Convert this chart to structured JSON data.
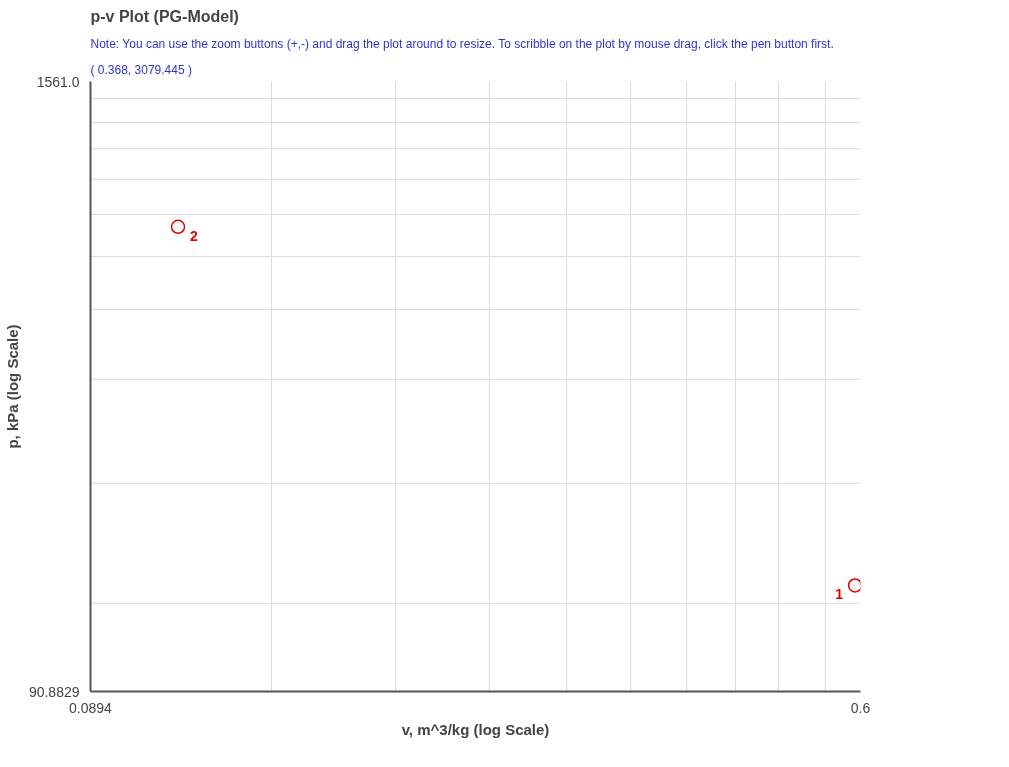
{
  "chart_data": {
    "type": "scatter",
    "title": "p-v Plot (PG-Model)",
    "xlabel": "v, m^3/kg (log Scale)",
    "ylabel": "p, kPa (log Scale)",
    "log": "xy",
    "marker": "circle",
    "grid": true,
    "x": [
      0.592,
      0.111
    ],
    "series": [
      {
        "color": "#e00000",
        "values": [
          149,
          793
        ]
      }
    ],
    "xlim": [
      0.0894,
      0.6
    ],
    "ylim": [
      90.8829,
      1561.0
    ],
    "xticks": [
      {
        "value": 0.0894,
        "label": "0.0894"
      },
      {
        "value": 0.14,
        "label": null
      },
      {
        "value": 0.19,
        "label": null
      },
      {
        "value": 0.24,
        "label": null
      },
      {
        "value": 0.29,
        "label": null
      },
      {
        "value": 0.34,
        "label": null
      },
      {
        "value": 0.39,
        "label": null
      },
      {
        "value": 0.44,
        "label": null
      },
      {
        "value": 0.49,
        "label": null
      },
      {
        "value": 0.55,
        "label": null
      },
      {
        "value": 0.6,
        "label": "0.6"
      }
    ],
    "yticks": [
      {
        "value": 90.8829,
        "label": "90.8829"
      },
      {
        "value": 137,
        "label": null
      },
      {
        "value": 240,
        "label": null
      },
      {
        "value": 390,
        "label": null
      },
      {
        "value": 540,
        "label": null
      },
      {
        "value": 690,
        "label": null
      },
      {
        "value": 840,
        "label": null
      },
      {
        "value": 990,
        "label": null
      },
      {
        "value": 1140,
        "label": null
      },
      {
        "value": 1290,
        "label": null
      },
      {
        "value": 1440,
        "label": null
      },
      {
        "value": 1561.0,
        "label": "1561.0"
      }
    ],
    "annotations": [
      "Note: You can use the zoom buttons (+,-) and drag the plot around to resize. To scribble on the plot by mouse drag, click the pen button first.",
      "( 0.368, 3079.445 )",
      {
        "text": "1",
        "x": 0.592,
        "y": 149
      },
      {
        "text": "2",
        "x": 0.111,
        "y": 793
      }
    ]
  }
}
